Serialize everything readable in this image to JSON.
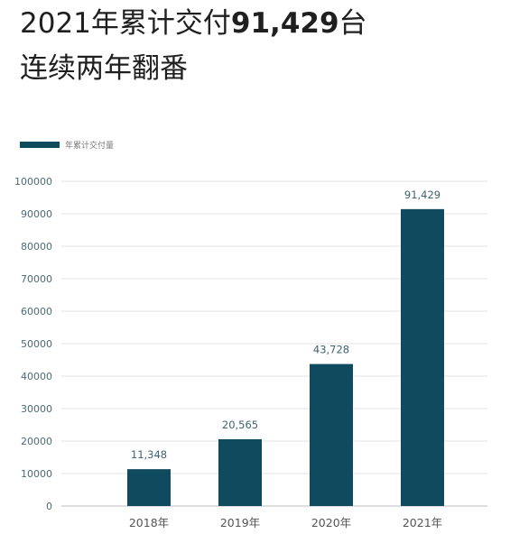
{
  "header": {
    "title_prefix": "2021年累计交付",
    "title_number": "91,429",
    "title_suffix": "台",
    "subtitle": "连续两年翻番"
  },
  "colors": {
    "bar": "#0f4a5e",
    "grid": "#e3e3e3",
    "baseline": "#bdbdbd"
  },
  "chart_data": {
    "type": "bar",
    "categories": [
      "2018年",
      "2019年",
      "2020年",
      "2021年"
    ],
    "series": [
      {
        "name": "年累计交付量",
        "values": [
          11348,
          20565,
          43728,
          91429
        ],
        "data_labels": [
          "11,348",
          "20,565",
          "43,728",
          "91,429"
        ]
      }
    ],
    "ylim": [
      0,
      100000
    ],
    "yticks": [
      0,
      10000,
      20000,
      30000,
      40000,
      50000,
      60000,
      70000,
      80000,
      90000,
      100000
    ],
    "grid": true,
    "legend": "top-left"
  }
}
